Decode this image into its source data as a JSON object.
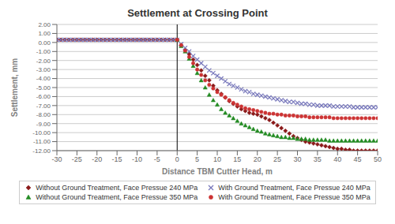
{
  "chart_data": {
    "type": "scatter",
    "title": "Settlement at Crossing Point",
    "x_label": "Distance TBM Cutter Head, m",
    "y_label": "Settlement, mm",
    "xlim": [
      -30,
      50
    ],
    "ylim": [
      -12,
      2
    ],
    "xticks": [
      -30,
      -25,
      -20,
      -15,
      -10,
      -5,
      0,
      5,
      10,
      15,
      20,
      25,
      30,
      35,
      40,
      45,
      50
    ],
    "yticks": [
      {
        "value": 2,
        "label": "2.00"
      },
      {
        "value": 1,
        "label": "1.00"
      },
      {
        "value": 0,
        "label": "0.00"
      },
      {
        "value": -1,
        "label": "-1.00"
      },
      {
        "value": -2,
        "label": "-2.00"
      },
      {
        "value": -3,
        "label": "-3.00"
      },
      {
        "value": -4,
        "label": "-4.00"
      },
      {
        "value": -5,
        "label": "-5.00"
      },
      {
        "value": -6,
        "label": "-6.00"
      },
      {
        "value": -7,
        "label": "-7.00"
      },
      {
        "value": -8,
        "label": "-8.00"
      },
      {
        "value": -9,
        "label": "-9.00"
      },
      {
        "value": -10,
        "label": "-10.00"
      },
      {
        "value": -11,
        "label": "-11.00"
      },
      {
        "value": -12,
        "label": "-12.00"
      }
    ],
    "grid": true,
    "vline_x": 0,
    "series": [
      {
        "name": "Without Ground Treatment, Face Pressue 240 MPa",
        "color": "#8B1A1A",
        "marker": "diamond",
        "x": [
          -30,
          -29,
          -28,
          -27,
          -26,
          -25,
          -24,
          -23,
          -22,
          -21,
          -20,
          -19,
          -18,
          -17,
          -16,
          -15,
          -14,
          -13,
          -12,
          -11,
          -10,
          -9,
          -8,
          -7,
          -6,
          -5,
          -4,
          -3,
          -2,
          -1,
          0,
          1,
          2,
          3,
          4,
          5,
          6,
          7,
          8,
          9,
          10,
          11,
          12,
          13,
          14,
          15,
          16,
          17,
          18,
          19,
          20,
          21,
          22,
          23,
          24,
          25,
          26,
          27,
          28,
          29,
          30,
          31,
          32,
          33,
          34,
          35,
          36,
          37,
          38,
          39,
          40,
          41,
          42,
          43,
          44,
          45,
          46,
          47,
          48,
          49,
          50
        ],
        "values": [
          0.3,
          0.3,
          0.3,
          0.3,
          0.3,
          0.3,
          0.3,
          0.3,
          0.3,
          0.3,
          0.3,
          0.3,
          0.3,
          0.3,
          0.3,
          0.3,
          0.3,
          0.3,
          0.3,
          0.3,
          0.3,
          0.3,
          0.3,
          0.3,
          0.3,
          0.3,
          0.3,
          0.3,
          0.3,
          0.3,
          0.3,
          -0.3,
          -0.8,
          -1.3,
          -1.9,
          -2.5,
          -3.1,
          -3.7,
          -4.2,
          -4.8,
          -5.3,
          -5.7,
          -6.1,
          -6.5,
          -6.8,
          -7.1,
          -7.4,
          -7.6,
          -7.8,
          -7.9,
          -8.0,
          -8.2,
          -8.4,
          -8.6,
          -8.9,
          -9.2,
          -9.5,
          -9.8,
          -10.1,
          -10.4,
          -10.6,
          -10.8,
          -11.0,
          -11.1,
          -11.2,
          -11.3,
          -11.4,
          -11.5,
          -11.6,
          -11.7,
          -11.8,
          -11.8,
          -11.9,
          -11.9,
          -12.0,
          -12.0,
          -12.0,
          -12.0,
          -12.0,
          -12.0,
          -12.0
        ]
      },
      {
        "name": "With Ground Treatment, Face Pressue 240 MPa",
        "color": "#7777BB",
        "marker": "x",
        "x": [
          -30,
          -29,
          -28,
          -27,
          -26,
          -25,
          -24,
          -23,
          -22,
          -21,
          -20,
          -19,
          -18,
          -17,
          -16,
          -15,
          -14,
          -13,
          -12,
          -11,
          -10,
          -9,
          -8,
          -7,
          -6,
          -5,
          -4,
          -3,
          -2,
          -1,
          0,
          1,
          2,
          3,
          4,
          5,
          6,
          7,
          8,
          9,
          10,
          11,
          12,
          13,
          14,
          15,
          16,
          17,
          18,
          19,
          20,
          21,
          22,
          23,
          24,
          25,
          26,
          27,
          28,
          29,
          30,
          31,
          32,
          33,
          34,
          35,
          36,
          37,
          38,
          39,
          40,
          41,
          42,
          43,
          44,
          45,
          46,
          47,
          48,
          49,
          50
        ],
        "values": [
          0.3,
          0.3,
          0.3,
          0.3,
          0.3,
          0.3,
          0.3,
          0.3,
          0.3,
          0.3,
          0.3,
          0.3,
          0.3,
          0.3,
          0.3,
          0.3,
          0.3,
          0.3,
          0.3,
          0.3,
          0.3,
          0.3,
          0.3,
          0.3,
          0.3,
          0.3,
          0.3,
          0.3,
          0.3,
          0.3,
          0.3,
          -0.2,
          -0.6,
          -1.0,
          -1.5,
          -1.9,
          -2.3,
          -2.7,
          -3.1,
          -3.4,
          -3.7,
          -4.0,
          -4.3,
          -4.6,
          -4.8,
          -5.0,
          -5.2,
          -5.4,
          -5.5,
          -5.7,
          -5.8,
          -5.9,
          -6.0,
          -6.1,
          -6.2,
          -6.3,
          -6.4,
          -6.5,
          -6.6,
          -6.6,
          -6.7,
          -6.8,
          -6.8,
          -6.9,
          -6.9,
          -7.0,
          -7.0,
          -7.0,
          -7.0,
          -7.1,
          -7.1,
          -7.1,
          -7.1,
          -7.1,
          -7.2,
          -7.2,
          -7.2,
          -7.2,
          -7.2,
          -7.2,
          -7.2
        ]
      },
      {
        "name": "Without Ground Treatment, Face Pressue 350 MPa",
        "color": "#228B22",
        "marker": "triangle",
        "x": [
          0,
          1,
          2,
          3,
          4,
          5,
          6,
          7,
          8,
          9,
          10,
          11,
          12,
          13,
          14,
          15,
          16,
          17,
          18,
          19,
          20,
          21,
          22,
          23,
          24,
          25,
          26,
          27,
          28,
          29,
          30,
          31,
          32,
          33,
          34,
          35,
          36,
          37,
          38,
          39,
          40,
          41,
          42,
          43,
          44,
          45,
          46,
          47,
          48,
          49,
          50
        ],
        "values": [
          0.3,
          -0.4,
          -1.0,
          -1.8,
          -2.6,
          -3.4,
          -4.2,
          -5.0,
          -5.8,
          -6.4,
          -6.9,
          -7.4,
          -7.8,
          -8.1,
          -8.4,
          -8.7,
          -9.0,
          -9.2,
          -9.4,
          -9.6,
          -9.8,
          -9.9,
          -10.1,
          -10.2,
          -10.3,
          -10.4,
          -10.5,
          -10.5,
          -10.6,
          -10.6,
          -10.7,
          -10.7,
          -10.7,
          -10.8,
          -10.8,
          -10.8,
          -10.8,
          -10.8,
          -10.9,
          -10.9,
          -10.9,
          -10.9,
          -10.9,
          -10.9,
          -10.9,
          -10.9,
          -10.9,
          -10.9,
          -10.9,
          -10.9,
          -10.9
        ]
      },
      {
        "name": "With Ground Treatment, Face Pressue 350 MPa",
        "color": "#CC3333",
        "marker": "circle",
        "x": [
          0,
          1,
          2,
          3,
          4,
          5,
          6,
          7,
          8,
          9,
          10,
          11,
          12,
          13,
          14,
          15,
          16,
          17,
          18,
          19,
          20,
          21,
          22,
          23,
          24,
          25,
          26,
          27,
          28,
          29,
          30,
          31,
          32,
          33,
          34,
          35,
          36,
          37,
          38,
          39,
          40,
          41,
          42,
          43,
          44,
          45,
          46,
          47,
          48,
          49,
          50
        ],
        "values": [
          0.3,
          -0.3,
          -0.9,
          -1.6,
          -2.3,
          -3.0,
          -3.6,
          -4.2,
          -4.7,
          -5.1,
          -5.5,
          -5.8,
          -6.1,
          -6.4,
          -6.7,
          -6.9,
          -7.1,
          -7.3,
          -7.4,
          -7.5,
          -7.6,
          -7.7,
          -7.8,
          -7.9,
          -7.9,
          -8.0,
          -8.0,
          -8.1,
          -8.1,
          -8.1,
          -8.2,
          -8.2,
          -8.2,
          -8.3,
          -8.3,
          -8.3,
          -8.3,
          -8.3,
          -8.3,
          -8.4,
          -8.4,
          -8.4,
          -8.4,
          -8.4,
          -8.4,
          -8.4,
          -8.4,
          -8.4,
          -8.4,
          -8.4,
          -8.4
        ]
      }
    ]
  }
}
